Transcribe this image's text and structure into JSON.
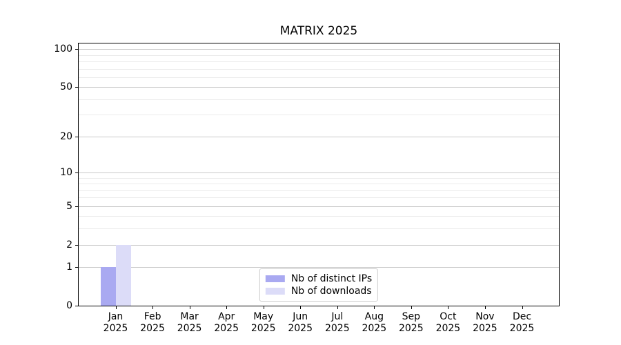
{
  "title": "MATRIX 2025",
  "chart_data": {
    "type": "bar",
    "title": "MATRIX 2025",
    "x_months": [
      "Jan",
      "Feb",
      "Mar",
      "Apr",
      "May",
      "Jun",
      "Jul",
      "Aug",
      "Sep",
      "Oct",
      "Nov",
      "Dec"
    ],
    "x_year": "2025",
    "series": [
      {
        "name": "Nb of distinct IPs",
        "color": "#a9a9f1",
        "values": [
          1,
          0,
          0,
          0,
          0,
          0,
          0,
          0,
          0,
          0,
          0,
          0
        ]
      },
      {
        "name": "Nb of downloads",
        "color": "#dcdcf8",
        "values": [
          2,
          0,
          0,
          0,
          0,
          0,
          0,
          0,
          0,
          0,
          0,
          0
        ]
      }
    ],
    "y_axis": {
      "scale": "log1p",
      "ticks": [
        0,
        1,
        2,
        5,
        10,
        20,
        50,
        100
      ],
      "minor_ticks": [
        3,
        4,
        6,
        7,
        8,
        9,
        30,
        40,
        60,
        70,
        80,
        90
      ],
      "max": 111
    },
    "grid": {
      "enabled": true,
      "major_color": "#c9c9c9",
      "minor_color": "#ebebeb"
    },
    "legend": {
      "position": "bottom-center",
      "entries": [
        "Nb of distinct IPs",
        "Nb of downloads"
      ]
    },
    "colors": {
      "axis": "#000000",
      "text": "#000000",
      "background": "#ffffff",
      "legend_border": "#cccccc"
    }
  }
}
